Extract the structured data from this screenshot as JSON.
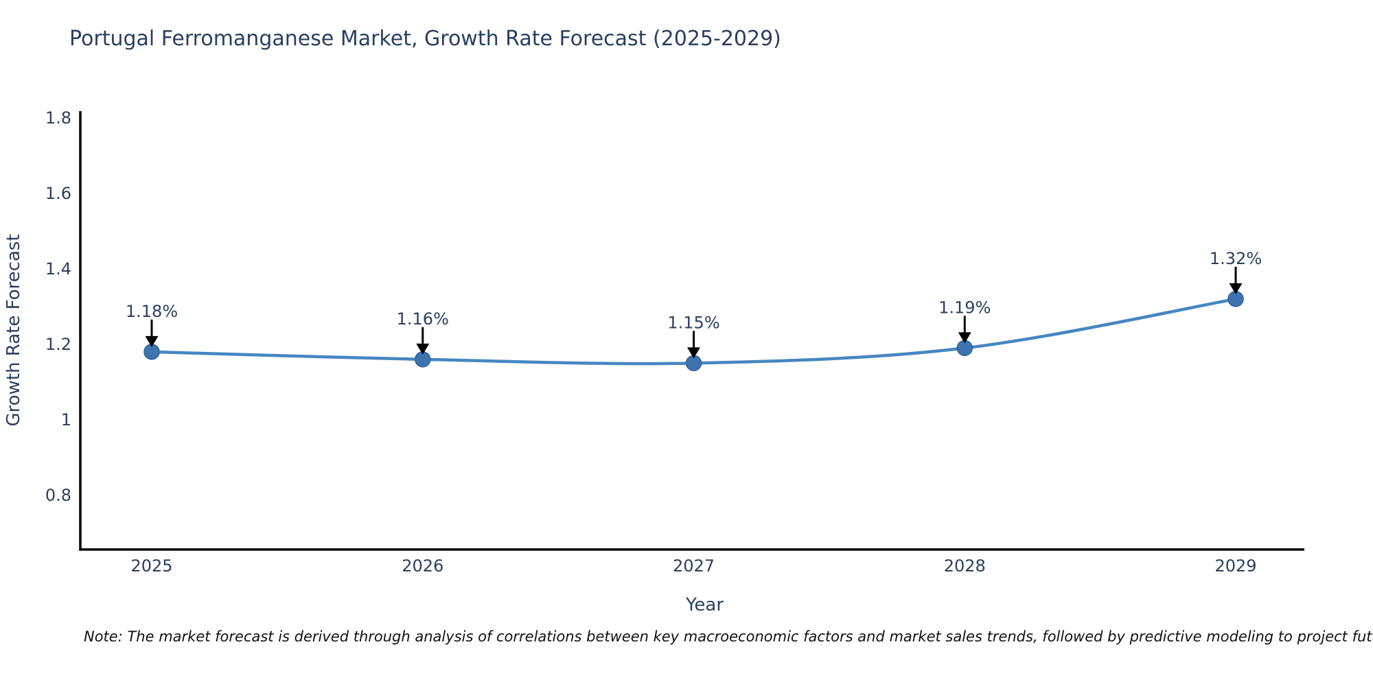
{
  "title": "Portugal Ferromanganese Market, Growth Rate Forecast (2025-2029)",
  "note": "Note: The market forecast is derived through analysis of correlations between key macroeconomic factors and market sales trends, followed by predictive modeling to project future sales",
  "chart_data": {
    "type": "line",
    "title": "Portugal Ferromanganese Market, Growth Rate Forecast (2025-2029)",
    "xlabel": "Year",
    "ylabel": "Growth Rate Forecast",
    "categories": [
      "2025",
      "2026",
      "2027",
      "2028",
      "2029"
    ],
    "series": [
      {
        "name": "Growth Rate Forecast",
        "values": [
          1.18,
          1.16,
          1.15,
          1.19,
          1.32
        ],
        "point_labels": [
          "1.18%",
          "1.16%",
          "1.15%",
          "1.19%",
          "1.32%"
        ]
      }
    ],
    "y_ticks": [
      0.8,
      1,
      1.2,
      1.4,
      1.6,
      1.8
    ],
    "y_tick_labels": [
      "0.8",
      "1",
      "1.2",
      "1.4",
      "1.6",
      "1.8"
    ],
    "ylim": [
      0.656,
      1.818
    ],
    "grid": false,
    "legend": false,
    "annotation_style": "text-with-down-arrow",
    "colors": {
      "line": "#4786c1",
      "marker_fill": "#3d74ae",
      "marker_edge": "#30639b",
      "axis_line": "#000000",
      "text": "#2a3f5f",
      "annotation_text": "#2a3f5f",
      "arrow": "#000000",
      "background": "#ffffff"
    }
  }
}
